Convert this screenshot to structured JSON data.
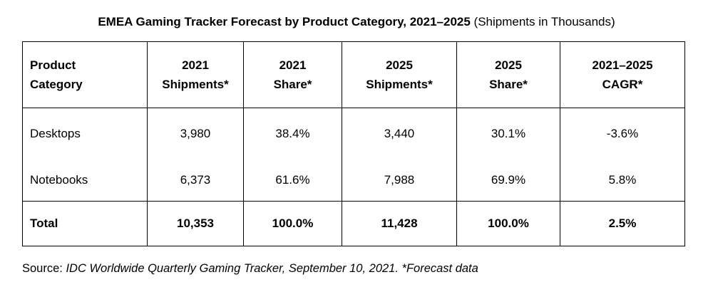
{
  "title": {
    "bold": "EMEA Gaming Tracker Forecast by Product Category, 2021–2025",
    "normal": "(Shipments in Thousands)"
  },
  "table": {
    "headers": [
      [
        "Product",
        "Category"
      ],
      [
        "2021",
        "Shipments*"
      ],
      [
        "2021",
        "Share*"
      ],
      [
        "2025",
        "Shipments*"
      ],
      [
        "2025",
        "Share*"
      ],
      [
        "2021–2025",
        "CAGR*"
      ]
    ],
    "rows": [
      [
        "Desktops",
        "3,980",
        "38.4%",
        "3,440",
        "30.1%",
        "-3.6%"
      ],
      [
        "Notebooks",
        "6,373",
        "61.6%",
        "7,988",
        "69.9%",
        "5.8%"
      ]
    ],
    "total": [
      "Total",
      "10,353",
      "100.0%",
      "11,428",
      "100.0%",
      "2.5%"
    ]
  },
  "source": {
    "prefix": "Source:",
    "text": "IDC Worldwide Quarterly Gaming Tracker, September 10, 2021. *Forecast data"
  }
}
